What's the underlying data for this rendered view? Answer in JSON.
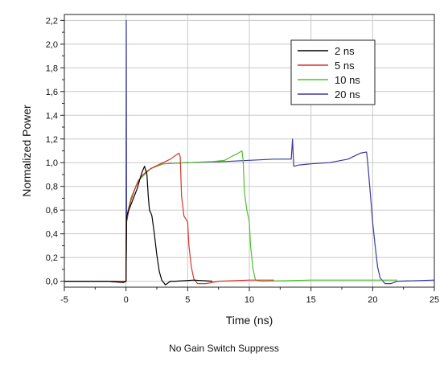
{
  "caption": "No Gain Switch Suppress",
  "chart_data": {
    "type": "line",
    "xlabel": "Time (ns)",
    "ylabel": "Normalized Power",
    "xlim": [
      -5,
      25
    ],
    "ylim": [
      -0.05,
      2.25
    ],
    "x_ticks": [
      -5,
      0,
      5,
      10,
      15,
      20,
      25
    ],
    "y_ticks": [
      0.0,
      0.2,
      0.4,
      0.6,
      0.8,
      1.0,
      1.2,
      1.4,
      1.6,
      1.8,
      2.0,
      2.2
    ],
    "y_tick_labels": [
      "0,0",
      "0,2",
      "0,4",
      "0,6",
      "0,8",
      "1,0",
      "1,2",
      "1,4",
      "1,6",
      "1,8",
      "2,0",
      "2,2"
    ],
    "x_tick_labels": [
      "-5",
      "0",
      "5",
      "10",
      "15",
      "20",
      "25"
    ],
    "grid": true,
    "legend_position": "top-right",
    "series": [
      {
        "name": "2 ns",
        "color": "#000000",
        "points": [
          [
            -5,
            0.0
          ],
          [
            -1.5,
            0.0
          ],
          [
            -0.2,
            -0.01
          ],
          [
            0.0,
            0.0
          ],
          [
            0.05,
            0.55
          ],
          [
            0.3,
            0.62
          ],
          [
            0.6,
            0.7
          ],
          [
            0.9,
            0.78
          ],
          [
            1.1,
            0.85
          ],
          [
            1.3,
            0.92
          ],
          [
            1.5,
            0.97
          ],
          [
            1.7,
            0.9
          ],
          [
            1.8,
            0.72
          ],
          [
            1.9,
            0.6
          ],
          [
            2.0,
            0.58
          ],
          [
            2.1,
            0.55
          ],
          [
            2.3,
            0.4
          ],
          [
            2.5,
            0.22
          ],
          [
            2.7,
            0.08
          ],
          [
            2.9,
            0.01
          ],
          [
            3.2,
            -0.03
          ],
          [
            3.6,
            0.0
          ],
          [
            4.0,
            0.0
          ],
          [
            5.5,
            0.01
          ],
          [
            7.0,
            0.0
          ]
        ]
      },
      {
        "name": "5 ns",
        "color": "#d9342b",
        "points": [
          [
            -5,
            0.0
          ],
          [
            -1.5,
            0.0
          ],
          [
            0.0,
            0.0
          ],
          [
            0.05,
            0.55
          ],
          [
            0.4,
            0.68
          ],
          [
            0.8,
            0.8
          ],
          [
            1.2,
            0.88
          ],
          [
            1.7,
            0.93
          ],
          [
            2.2,
            0.96
          ],
          [
            3.0,
            1.0
          ],
          [
            3.6,
            1.03
          ],
          [
            4.0,
            1.06
          ],
          [
            4.3,
            1.08
          ],
          [
            4.4,
            1.05
          ],
          [
            4.5,
            0.72
          ],
          [
            4.7,
            0.55
          ],
          [
            5.0,
            0.5
          ],
          [
            5.1,
            0.3
          ],
          [
            5.3,
            0.12
          ],
          [
            5.5,
            0.02
          ],
          [
            5.8,
            -0.02
          ],
          [
            6.5,
            -0.02
          ],
          [
            7.5,
            0.0
          ],
          [
            10.0,
            0.01
          ],
          [
            12.0,
            0.01
          ]
        ]
      },
      {
        "name": "10 ns",
        "color": "#4fc12e",
        "points": [
          [
            -5,
            0.0
          ],
          [
            -1.5,
            0.0
          ],
          [
            0.0,
            0.0
          ],
          [
            0.05,
            0.55
          ],
          [
            0.4,
            0.7
          ],
          [
            1.0,
            0.85
          ],
          [
            2.0,
            0.95
          ],
          [
            3.0,
            0.99
          ],
          [
            5.0,
            1.0
          ],
          [
            7.0,
            1.01
          ],
          [
            8.0,
            1.02
          ],
          [
            8.7,
            1.06
          ],
          [
            9.1,
            1.08
          ],
          [
            9.4,
            1.1
          ],
          [
            9.5,
            1.02
          ],
          [
            9.6,
            0.75
          ],
          [
            9.8,
            0.6
          ],
          [
            10.0,
            0.5
          ],
          [
            10.1,
            0.3
          ],
          [
            10.3,
            0.1
          ],
          [
            10.5,
            0.01
          ],
          [
            11.0,
            0.0
          ],
          [
            15.0,
            0.01
          ],
          [
            20.0,
            0.01
          ],
          [
            22.0,
            0.01
          ]
        ]
      },
      {
        "name": "20 ns",
        "color": "#3a3a9c",
        "points": [
          [
            -5,
            0.0
          ],
          [
            -1.5,
            0.0
          ],
          [
            -0.2,
            -0.01
          ],
          [
            0.0,
            0.0
          ],
          [
            0.02,
            2.2
          ],
          [
            0.05,
            0.5
          ],
          [
            0.4,
            0.7
          ],
          [
            1.0,
            0.85
          ],
          [
            2.0,
            0.95
          ],
          [
            3.0,
            0.99
          ],
          [
            5.0,
            1.0
          ],
          [
            8.0,
            1.01
          ],
          [
            10.0,
            1.02
          ],
          [
            12.0,
            1.03
          ],
          [
            13.4,
            1.03
          ],
          [
            13.5,
            1.2
          ],
          [
            13.6,
            0.97
          ],
          [
            14.0,
            0.98
          ],
          [
            15.0,
            0.99
          ],
          [
            16.5,
            1.0
          ],
          [
            18.0,
            1.03
          ],
          [
            19.0,
            1.08
          ],
          [
            19.5,
            1.09
          ],
          [
            19.6,
            1.0
          ],
          [
            19.8,
            0.75
          ],
          [
            20.0,
            0.5
          ],
          [
            20.2,
            0.3
          ],
          [
            20.4,
            0.12
          ],
          [
            20.6,
            0.03
          ],
          [
            21.0,
            -0.02
          ],
          [
            21.5,
            -0.02
          ],
          [
            22.0,
            0.0
          ],
          [
            25.0,
            0.01
          ]
        ]
      }
    ]
  }
}
